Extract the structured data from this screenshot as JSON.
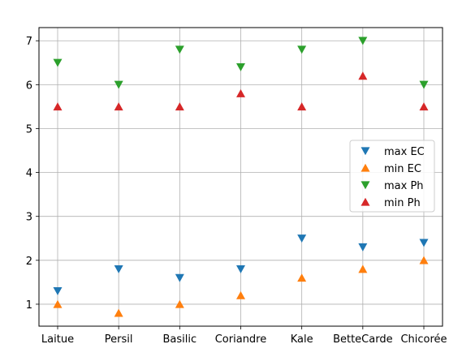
{
  "chart_data": {
    "type": "scatter",
    "title": "",
    "xlabel": "",
    "ylabel": "",
    "categories": [
      "Laitue",
      "Persil",
      "Basilic",
      "Coriandre",
      "Kale",
      "BetteCarde",
      "Chicorée"
    ],
    "ylim": [
      0.5,
      7.3
    ],
    "yticks": [
      1,
      2,
      3,
      4,
      5,
      6,
      7
    ],
    "grid": true,
    "legend_position": "center-right",
    "series": [
      {
        "name": "max EC",
        "marker": "triangle-down",
        "color": "#1f77b4",
        "values": [
          1.3,
          1.8,
          1.6,
          1.8,
          2.5,
          2.3,
          2.4
        ]
      },
      {
        "name": "min EC",
        "marker": "triangle-up",
        "color": "#ff7f0e",
        "values": [
          1.0,
          0.8,
          1.0,
          1.2,
          1.6,
          1.8,
          2.0
        ]
      },
      {
        "name": "max Ph",
        "marker": "triangle-down",
        "color": "#2ca02c",
        "values": [
          6.5,
          6.0,
          6.8,
          6.4,
          6.8,
          7.0,
          6.0
        ]
      },
      {
        "name": "min Ph",
        "marker": "triangle-up",
        "color": "#d62728",
        "values": [
          5.5,
          5.5,
          5.5,
          5.8,
          5.5,
          6.2,
          5.5
        ]
      }
    ]
  }
}
